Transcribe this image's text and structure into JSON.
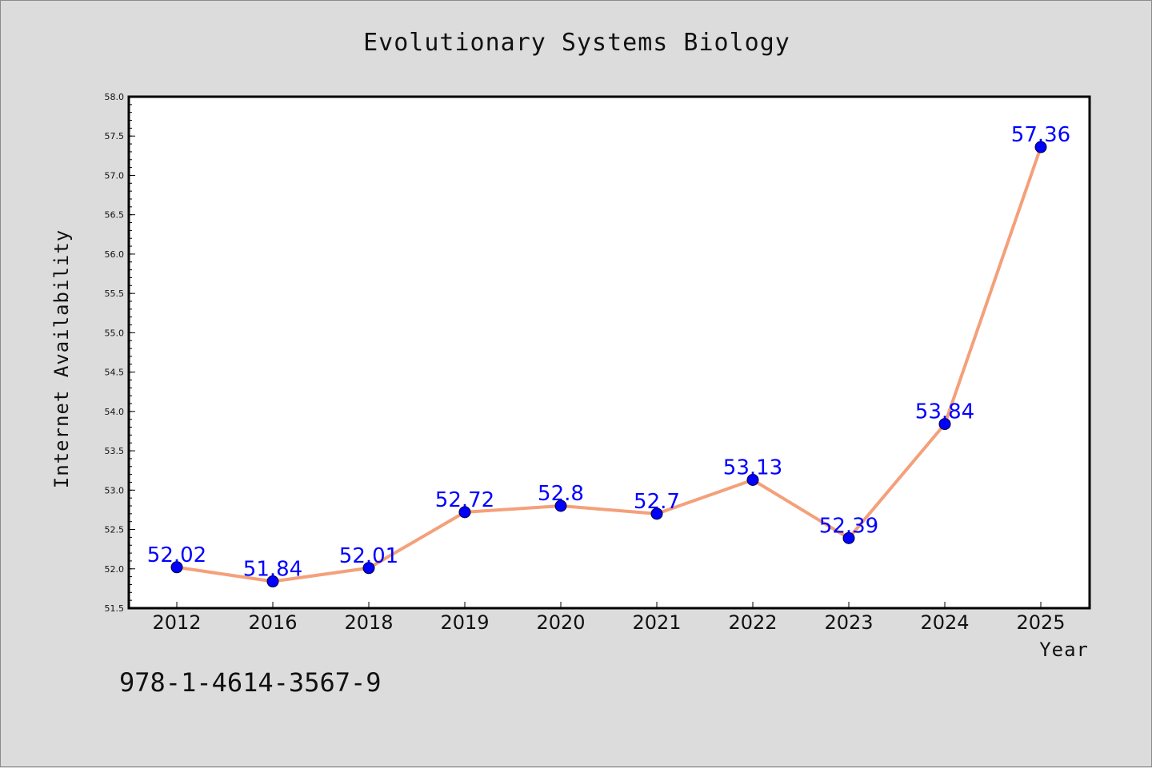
{
  "colors": {
    "background": "#dcdcdc",
    "plot_background": "#ffffff",
    "line": "#f4a07a",
    "marker": "#0000ff",
    "data_label": "#0000ff"
  },
  "footer_text": "978-1-4614-3567-9",
  "chart_data": {
    "type": "line",
    "title": "Evolutionary Systems Biology",
    "xlabel": "Year",
    "ylabel": "Internet Availability",
    "categories": [
      "2012",
      "2016",
      "2018",
      "2019",
      "2020",
      "2021",
      "2022",
      "2023",
      "2024",
      "2025"
    ],
    "values": [
      52.02,
      51.84,
      52.01,
      52.72,
      52.8,
      52.7,
      53.13,
      52.39,
      53.84,
      57.36
    ],
    "data_labels": [
      "52.02",
      "51.84",
      "52.01",
      "52.72",
      "52.8",
      "52.7",
      "53.13",
      "52.39",
      "53.84",
      "57.36"
    ],
    "ylim": [
      51.5,
      58.0
    ],
    "yticks": [
      "51.5",
      "52.0",
      "52.5",
      "53.0",
      "53.5",
      "54.0",
      "54.5",
      "55.0",
      "55.5",
      "56.0",
      "56.5",
      "57.0",
      "57.5",
      "58.0"
    ],
    "grid": false,
    "legend": "none"
  }
}
